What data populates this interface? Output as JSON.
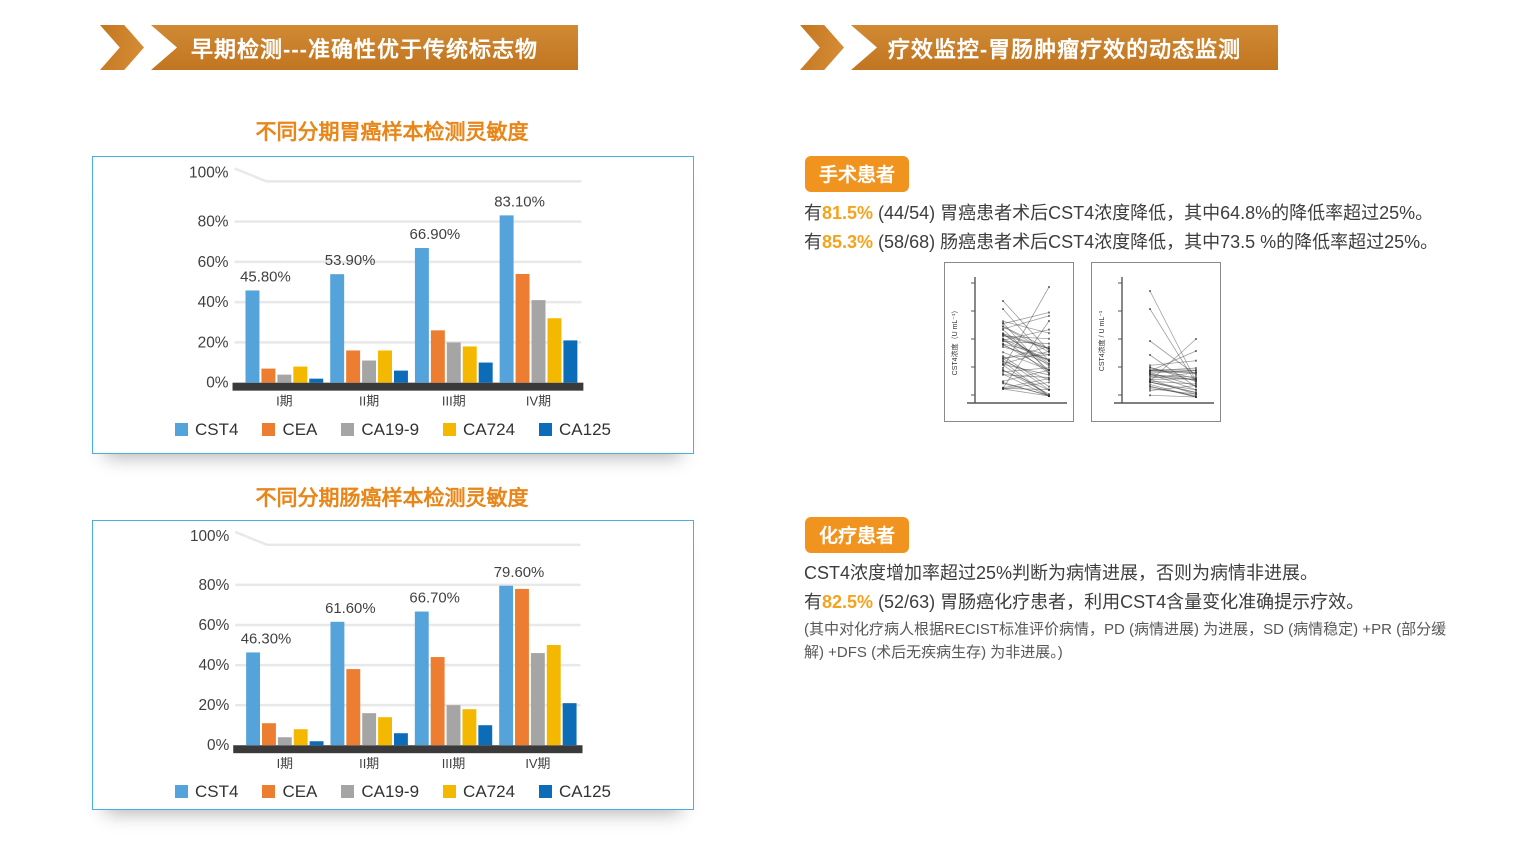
{
  "colors": {
    "banner_orange": "#c9802b",
    "badge_orange": "#f0941f",
    "highlight_orange": "#f5a21d",
    "chart_title_orange": "#e8861a",
    "chart_border_blue": "#4aaede",
    "axis_baseline_dark": "#3a3a3a"
  },
  "left": {
    "header": "早期检测---准确性优于传统标志物"
  },
  "right": {
    "header": "疗效监控-胃肠肿瘤疗效的动态监测",
    "surgical": {
      "badge": "手术患者",
      "line1": {
        "pre": "有",
        "hl": "81.5%",
        "rest": " (44/54) 胃癌患者术后CST4浓度降低，其中64.8%的降低率超过25%。"
      },
      "line2": {
        "pre": "有",
        "hl": "85.3%",
        "rest": " (58/68) 肠癌患者术后CST4浓度降低，其中73.5 %的降低率超过25%。"
      }
    },
    "chemo": {
      "badge": "化疗患者",
      "line1": "CST4浓度增加率超过25%判断为病情进展，否则为病情非进展。",
      "line2": {
        "pre": "有",
        "hl": "82.5%",
        "rest": " (52/63) 胃肠癌化疗患者，利用CST4含量变化准确提示疗效。"
      },
      "note": "(其中对化疗病人根据RECIST标准评价病情，PD (病情进展) 为进展，SD (病情稳定) +PR (部分缓解) +DFS (术后无疾病生存) 为非进展。)"
    }
  },
  "chart_data": [
    {
      "type": "bar",
      "title": "不同分期胃癌样本检测灵敏度",
      "categories": [
        "I期",
        "II期",
        "III期",
        "IV期"
      ],
      "ylim": [
        0,
        100
      ],
      "yticks": [
        "100%",
        "80%",
        "60%",
        "40%",
        "20%",
        "0%"
      ],
      "grid": true,
      "legend_position": "bottom",
      "series": [
        {
          "name": "CST4",
          "color": "#54a4db",
          "values": [
            45.8,
            53.9,
            66.9,
            83.1
          ],
          "labels": [
            "45.80%",
            "53.90%",
            "66.90%",
            "83.10%"
          ]
        },
        {
          "name": "CEA",
          "color": "#ed7d31",
          "values": [
            7,
            16,
            26,
            54
          ]
        },
        {
          "name": "CA19-9",
          "color": "#a5a5a5",
          "values": [
            4,
            11,
            20,
            41
          ]
        },
        {
          "name": "CA724",
          "color": "#f5b800",
          "values": [
            8,
            16,
            18,
            32
          ]
        },
        {
          "name": "CA125",
          "color": "#0d6cb8",
          "values": [
            2,
            6,
            10,
            21
          ]
        }
      ]
    },
    {
      "type": "bar",
      "title": "不同分期肠癌样本检测灵敏度",
      "categories": [
        "I期",
        "II期",
        "III期",
        "IV期"
      ],
      "ylim": [
        0,
        100
      ],
      "yticks": [
        "100%",
        "80%",
        "60%",
        "40%",
        "20%",
        "0%"
      ],
      "grid": true,
      "legend_position": "bottom",
      "series": [
        {
          "name": "CST4",
          "color": "#54a4db",
          "values": [
            46.3,
            61.6,
            66.7,
            79.6
          ],
          "labels": [
            "46.30%",
            "61.60%",
            "66.70%",
            "79.60%"
          ]
        },
        {
          "name": "CEA",
          "color": "#ed7d31",
          "values": [
            11,
            38,
            44,
            78
          ]
        },
        {
          "name": "CA19-9",
          "color": "#a5a5a5",
          "values": [
            4,
            16,
            20,
            46
          ]
        },
        {
          "name": "CA724",
          "color": "#f5b800",
          "values": [
            8,
            14,
            18,
            50
          ]
        },
        {
          "name": "CA125",
          "color": "#0d6cb8",
          "values": [
            2,
            6,
            10,
            21
          ]
        }
      ]
    },
    {
      "type": "line",
      "subtype": "paired-lines-pre-post",
      "ylabel": "CST4浓度（U mL⁻¹）",
      "x_points": 2,
      "visual_pattern": "most paired lines decline from left to right"
    },
    {
      "type": "line",
      "subtype": "paired-lines-pre-post",
      "ylabel": "CST4浓度 / U mL⁻¹",
      "x_points": 2,
      "visual_pattern": "dense low cluster, several steep declines from high values"
    }
  ]
}
